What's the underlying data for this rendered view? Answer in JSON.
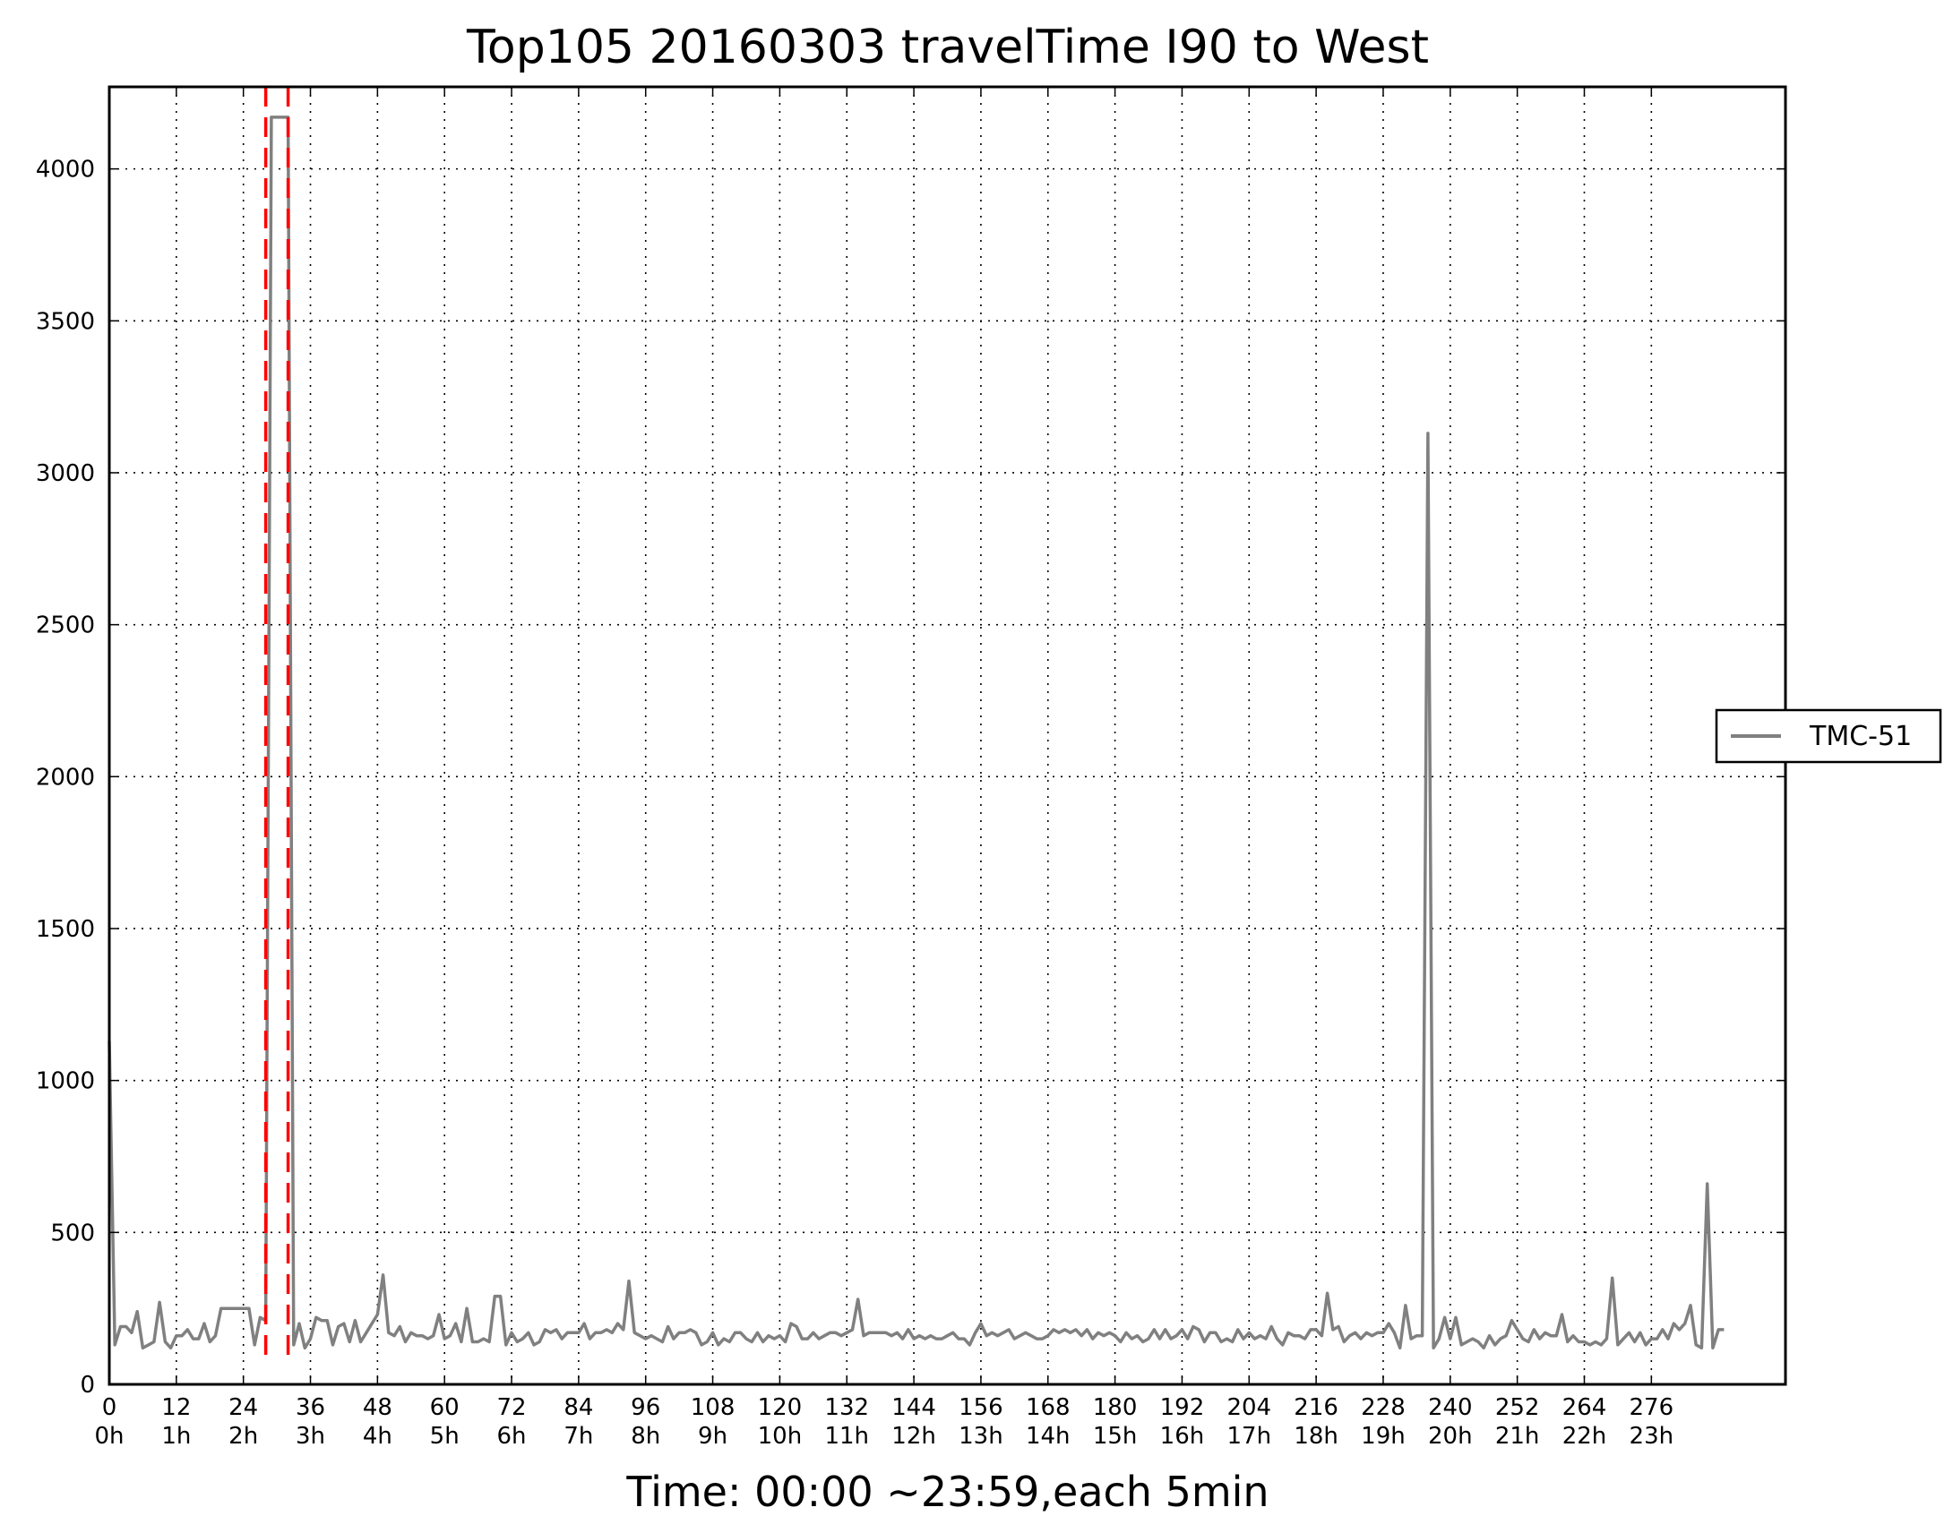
{
  "chart_data": {
    "type": "line",
    "title": "Top105 20160303 travelTime I90 to West",
    "xlabel": "Time: 00:00 ~23:59,each 5min",
    "ylabel": "",
    "xlim": [
      0,
      300
    ],
    "ylim": [
      0,
      4270
    ],
    "grid": true,
    "legend_position": "right, outside",
    "x_tick_values": [
      0,
      12,
      24,
      36,
      48,
      60,
      72,
      84,
      96,
      108,
      120,
      132,
      144,
      156,
      168,
      180,
      192,
      204,
      216,
      228,
      240,
      252,
      264,
      276
    ],
    "x_tick_hours": [
      "0h",
      "1h",
      "2h",
      "3h",
      "4h",
      "5h",
      "6h",
      "7h",
      "8h",
      "9h",
      "10h",
      "11h",
      "12h",
      "13h",
      "14h",
      "15h",
      "16h",
      "17h",
      "18h",
      "19h",
      "20h",
      "21h",
      "22h",
      "23h"
    ],
    "y_tick_values": [
      0,
      500,
      1000,
      1500,
      2000,
      2500,
      3000,
      3500,
      4000
    ],
    "marker_lines": [
      {
        "x": 28,
        "color": "#ff0000",
        "style": "dashed"
      },
      {
        "x": 32,
        "color": "#ff0000",
        "style": "dashed"
      }
    ],
    "series": [
      {
        "name": "TMC-51",
        "color": "#808080",
        "values": [
          1130,
          130,
          190,
          190,
          170,
          240,
          120,
          130,
          140,
          270,
          140,
          120,
          160,
          160,
          180,
          150,
          150,
          200,
          140,
          160,
          250,
          250,
          250,
          250,
          250,
          250,
          130,
          220,
          210,
          4170,
          4170,
          4170,
          4170,
          130,
          200,
          120,
          150,
          220,
          210,
          210,
          130,
          190,
          200,
          140,
          210,
          140,
          170,
          200,
          230,
          360,
          170,
          160,
          190,
          140,
          170,
          160,
          160,
          150,
          160,
          230,
          150,
          160,
          200,
          140,
          250,
          140,
          140,
          150,
          140,
          290,
          290,
          130,
          170,
          140,
          150,
          170,
          130,
          140,
          180,
          170,
          180,
          150,
          170,
          170,
          170,
          200,
          150,
          170,
          170,
          180,
          170,
          200,
          180,
          340,
          170,
          160,
          150,
          160,
          150,
          140,
          190,
          150,
          170,
          170,
          180,
          170,
          130,
          140,
          170,
          130,
          150,
          140,
          170,
          170,
          150,
          140,
          170,
          140,
          160,
          150,
          160,
          140,
          200,
          190,
          150,
          150,
          170,
          150,
          160,
          170,
          170,
          160,
          170,
          180,
          280,
          160,
          170,
          170,
          170,
          170,
          160,
          170,
          150,
          180,
          150,
          160,
          150,
          160,
          150,
          150,
          160,
          170,
          150,
          150,
          130,
          170,
          200,
          160,
          170,
          160,
          170,
          180,
          150,
          160,
          170,
          160,
          150,
          150,
          160,
          180,
          170,
          180,
          170,
          180,
          160,
          180,
          150,
          170,
          160,
          170,
          160,
          140,
          170,
          150,
          160,
          140,
          150,
          180,
          150,
          180,
          150,
          160,
          180,
          150,
          190,
          180,
          140,
          170,
          170,
          140,
          150,
          140,
          180,
          150,
          170,
          150,
          160,
          150,
          190,
          150,
          130,
          170,
          160,
          160,
          150,
          180,
          180,
          160,
          300,
          180,
          190,
          140,
          160,
          170,
          150,
          170,
          160,
          170,
          170,
          200,
          170,
          120,
          260,
          150,
          160,
          160,
          3130,
          120,
          150,
          220,
          150,
          220,
          130,
          140,
          150,
          140,
          120,
          160,
          130,
          150,
          160,
          210,
          180,
          150,
          140,
          180,
          150,
          170,
          160,
          160,
          230,
          140,
          160,
          140,
          140,
          130,
          140,
          130,
          150,
          350,
          130,
          150,
          170,
          140,
          170,
          130,
          150,
          150,
          180,
          150,
          200,
          180,
          200,
          260,
          130,
          120,
          660,
          120,
          180,
          180
        ]
      }
    ]
  }
}
